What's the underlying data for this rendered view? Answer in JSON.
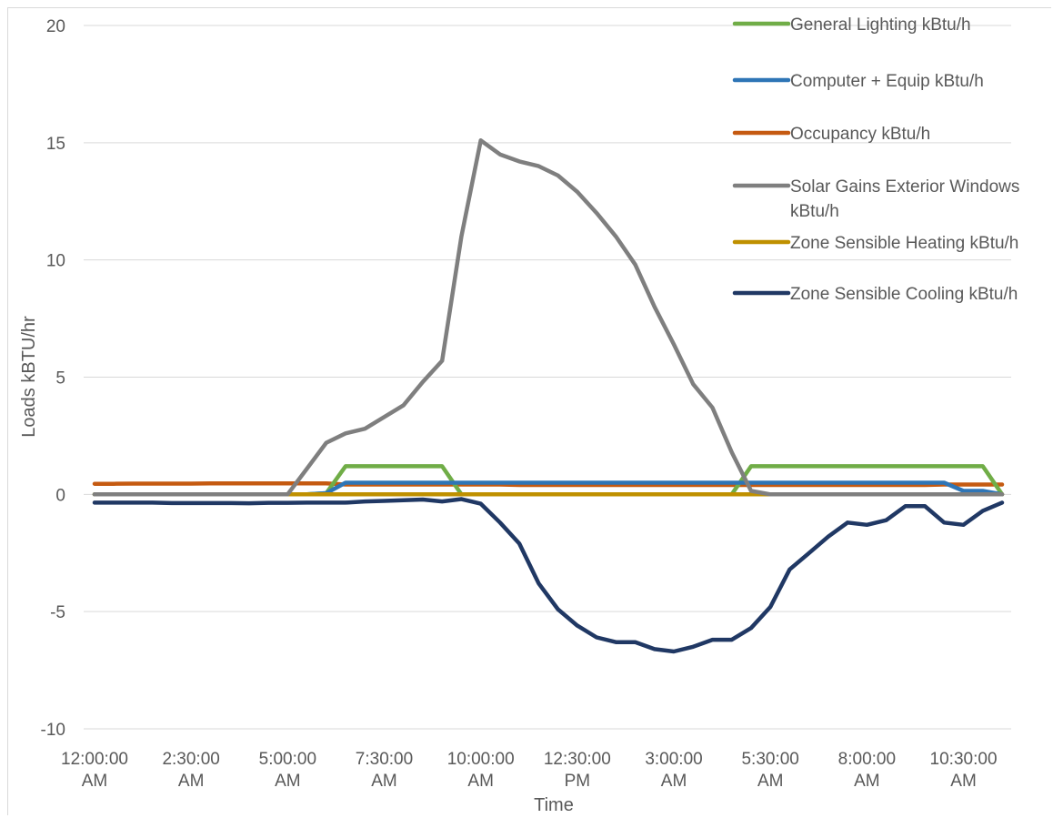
{
  "chart_data": {
    "type": "line",
    "title": "",
    "xlabel": "Time",
    "ylabel": "Loads kBTU/hr",
    "ylim": [
      -10,
      20
    ],
    "yticks": [
      -10,
      -5,
      0,
      5,
      10,
      15,
      20
    ],
    "grid": true,
    "legend_position": "top-right",
    "x_step_minutes": 30,
    "xticks": [
      {
        "minutes": 0,
        "label": [
          "12:00:00",
          "AM"
        ]
      },
      {
        "minutes": 150,
        "label": [
          "2:30:00",
          "AM"
        ]
      },
      {
        "minutes": 300,
        "label": [
          "5:00:00",
          "AM"
        ]
      },
      {
        "minutes": 450,
        "label": [
          "7:30:00",
          "AM"
        ]
      },
      {
        "minutes": 600,
        "label": [
          "10:00:00",
          "AM"
        ]
      },
      {
        "minutes": 750,
        "label": [
          "12:30:00",
          "PM"
        ]
      },
      {
        "minutes": 900,
        "label": [
          "3:00:00",
          "AM"
        ]
      },
      {
        "minutes": 1050,
        "label": [
          "5:30:00",
          "AM"
        ]
      },
      {
        "minutes": 1200,
        "label": [
          "8:00:00",
          "AM"
        ]
      },
      {
        "minutes": 1350,
        "label": [
          "10:30:00",
          "AM"
        ]
      }
    ],
    "series": [
      {
        "name": "General Lighting kBtu/h",
        "color": "#70ad47",
        "values": [
          0,
          0,
          0,
          0,
          0,
          0,
          0,
          0,
          0,
          0,
          0,
          0,
          0.05,
          1.2,
          1.2,
          1.2,
          1.2,
          1.2,
          1.2,
          0,
          0,
          0,
          0,
          0,
          0,
          0,
          0,
          0,
          0,
          0,
          0,
          0,
          0,
          0,
          1.2,
          1.2,
          1.2,
          1.2,
          1.2,
          1.2,
          1.2,
          1.2,
          1.2,
          1.2,
          1.2,
          1.2,
          1.2,
          0
        ]
      },
      {
        "name": "Computer + Equip kBtu/h",
        "color": "#2e75b6",
        "values": [
          0,
          0,
          0,
          0,
          0,
          0,
          0,
          0,
          0,
          0,
          0,
          0,
          0.05,
          0.5,
          0.5,
          0.5,
          0.5,
          0.5,
          0.5,
          0.5,
          0.5,
          0.5,
          0.5,
          0.5,
          0.5,
          0.5,
          0.5,
          0.5,
          0.5,
          0.5,
          0.5,
          0.5,
          0.5,
          0.5,
          0.5,
          0.5,
          0.5,
          0.5,
          0.5,
          0.5,
          0.5,
          0.5,
          0.5,
          0.5,
          0.5,
          0.15,
          0.15,
          0
        ]
      },
      {
        "name": "Occupancy kBtu/h",
        "color": "#c55a11",
        "values": [
          0.45,
          0.45,
          0.46,
          0.46,
          0.46,
          0.46,
          0.47,
          0.47,
          0.47,
          0.47,
          0.47,
          0.47,
          0.47,
          0.42,
          0.42,
          0.42,
          0.42,
          0.42,
          0.42,
          0.42,
          0.42,
          0.42,
          0.4,
          0.4,
          0.4,
          0.4,
          0.4,
          0.4,
          0.4,
          0.4,
          0.4,
          0.4,
          0.4,
          0.4,
          0.4,
          0.4,
          0.4,
          0.4,
          0.4,
          0.4,
          0.4,
          0.4,
          0.4,
          0.4,
          0.42,
          0.42,
          0.42,
          0.42
        ]
      },
      {
        "name": "Solar Gains Exterior Windows kBtu/h",
        "color": "#7f7f7f",
        "values": [
          0,
          0,
          0,
          0,
          0,
          0,
          0,
          0,
          0,
          0,
          0,
          1.1,
          2.2,
          2.6,
          2.8,
          3.3,
          3.8,
          4.8,
          5.7,
          11.0,
          15.1,
          14.5,
          14.2,
          14.0,
          13.6,
          12.9,
          12.0,
          11.0,
          9.8,
          8.0,
          6.4,
          4.7,
          3.7,
          1.8,
          0.15,
          0,
          0,
          0,
          0,
          0,
          0,
          0,
          0,
          0,
          0,
          0,
          0,
          0
        ]
      },
      {
        "name": "Zone Sensible Heating kBtu/h",
        "color": "#bf9000",
        "values": [
          0,
          0,
          0,
          0,
          0,
          0,
          0,
          0,
          0,
          0,
          0,
          0,
          0,
          0,
          0,
          0,
          0,
          0,
          0,
          0,
          0,
          0,
          0,
          0,
          0,
          0,
          0,
          0,
          0,
          0,
          0,
          0,
          0,
          0,
          0,
          0,
          0,
          0,
          0,
          0,
          0,
          0,
          0,
          0,
          0,
          0,
          0,
          0
        ]
      },
      {
        "name": "Zone Sensible Cooling kBtu/h",
        "color": "#203864",
        "values": [
          -0.35,
          -0.35,
          -0.35,
          -0.35,
          -0.37,
          -0.37,
          -0.37,
          -0.37,
          -0.38,
          -0.36,
          -0.36,
          -0.35,
          -0.35,
          -0.35,
          -0.3,
          -0.28,
          -0.25,
          -0.22,
          -0.3,
          -0.2,
          -0.4,
          -1.2,
          -2.1,
          -3.8,
          -4.9,
          -5.6,
          -6.1,
          -6.3,
          -6.3,
          -6.6,
          -6.7,
          -6.5,
          -6.2,
          -6.2,
          -5.7,
          -4.8,
          -3.2,
          -2.5,
          -1.8,
          -1.2,
          -1.3,
          -1.1,
          -0.5,
          -0.5,
          -1.2,
          -1.3,
          -0.7,
          -0.35
        ]
      }
    ]
  }
}
